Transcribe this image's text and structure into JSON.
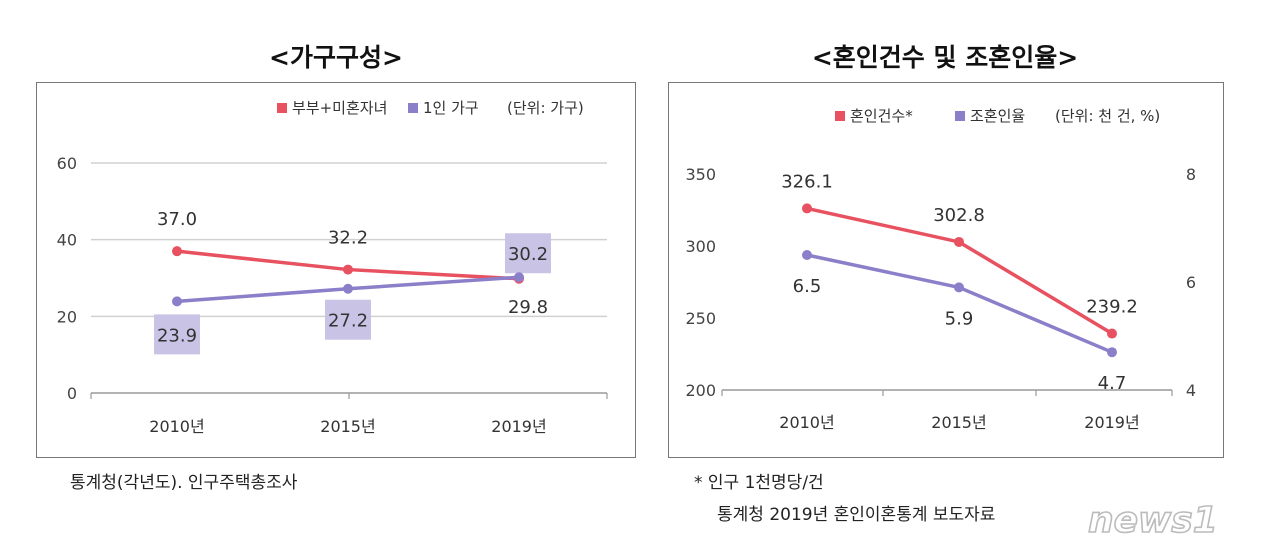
{
  "left_chart": {
    "title": "<가구구성>",
    "unit": "(단위: 가구)",
    "source": "통계청(각년도). 인구주택총조사"
  },
  "right_chart": {
    "title": "<혼인건수 및 조혼인율>",
    "unit": "(단위: 천 건, %)",
    "footnote": "*  인구  1천명당/건",
    "source": "통계청  2019년  혼인이혼통계  보도자료"
  },
  "watermark": {
    "text": "news1"
  },
  "chart_data": [
    {
      "type": "line",
      "title": "<가구구성>",
      "unit_label": "(단위: 가구)",
      "categories": [
        "2010년",
        "2015년",
        "2019년"
      ],
      "ylim": [
        0,
        60
      ],
      "yticks": [
        0,
        20,
        40,
        60
      ],
      "grid": true,
      "legend_position": "top-right",
      "series": [
        {
          "name": "부부+미혼자녀",
          "color": "#e8515f",
          "values": [
            37.0,
            32.2,
            29.8
          ],
          "labels": [
            "37.0",
            "32.2",
            "29.8"
          ]
        },
        {
          "name": "1인 가구",
          "color": "#8c7fc9",
          "values": [
            23.9,
            27.2,
            30.2
          ],
          "labels": [
            "23.9",
            "27.2",
            "30.2"
          ]
        }
      ]
    },
    {
      "type": "line",
      "title": "<혼인건수 및 조혼인율>",
      "unit_label": "(단위: 천 건, %)",
      "categories": [
        "2010년",
        "2015년",
        "2019년"
      ],
      "ylim_left": [
        200,
        350
      ],
      "yticks_left": [
        200,
        250,
        300,
        350
      ],
      "ylim_right": [
        4,
        8
      ],
      "yticks_right": [
        4,
        6,
        8
      ],
      "legend_position": "top-right",
      "series": [
        {
          "name": "혼인건수*",
          "axis": "left",
          "color": "#e8515f",
          "values": [
            326.1,
            302.8,
            239.2
          ],
          "labels": [
            "326.1",
            "302.8",
            "239.2"
          ]
        },
        {
          "name": "조혼인율",
          "axis": "right",
          "color": "#8c7fc9",
          "values": [
            6.5,
            5.9,
            4.7
          ],
          "labels": [
            "6.5",
            "5.9",
            "4.7"
          ]
        }
      ]
    }
  ]
}
